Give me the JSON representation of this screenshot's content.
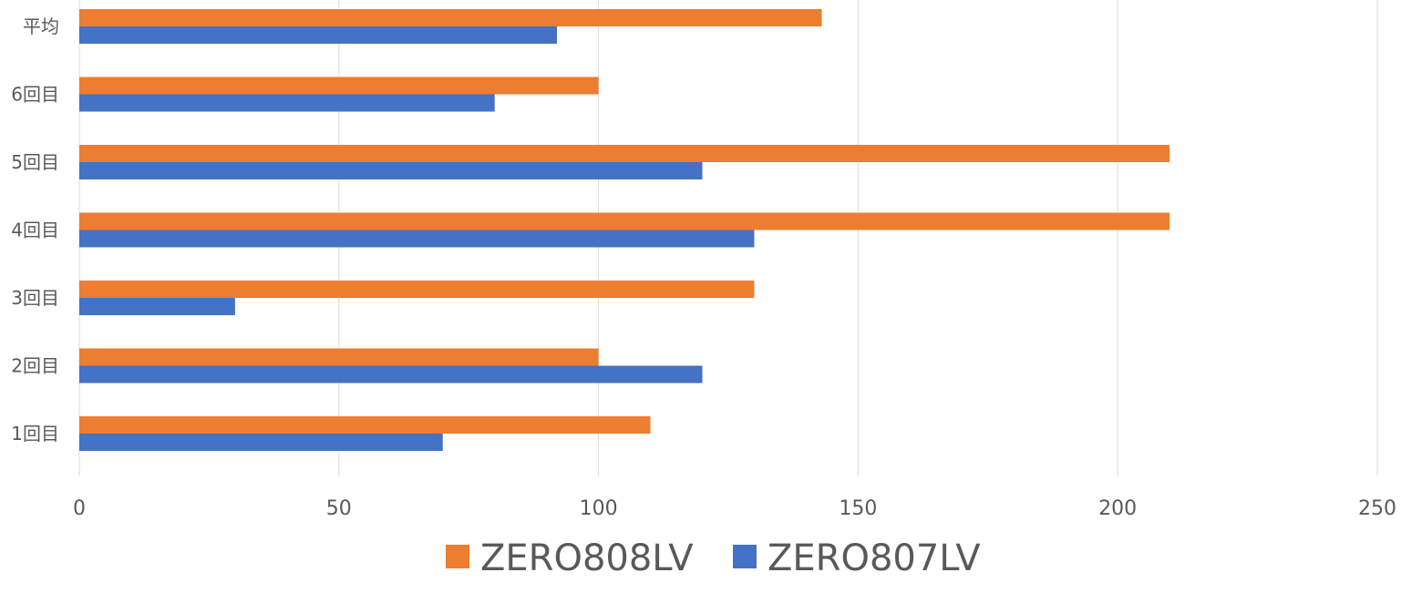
{
  "chart_data": {
    "type": "bar",
    "orientation": "horizontal",
    "categories": [
      "1回目",
      "2回目",
      "3回目",
      "4回目",
      "5回目",
      "6回目",
      "平均"
    ],
    "series": [
      {
        "name": "ZERO808LV",
        "color": "#ED7D31",
        "values": [
          110,
          100,
          130,
          210,
          210,
          100,
          143
        ]
      },
      {
        "name": "ZERO807LV",
        "color": "#4472C4",
        "values": [
          70,
          120,
          30,
          130,
          120,
          80,
          92
        ]
      }
    ],
    "xlim": [
      0,
      250
    ],
    "xticks": [
      0,
      50,
      100,
      150,
      200,
      250
    ],
    "grid": "vertical",
    "legend_position": "bottom",
    "title": "",
    "xlabel": "",
    "ylabel": ""
  }
}
